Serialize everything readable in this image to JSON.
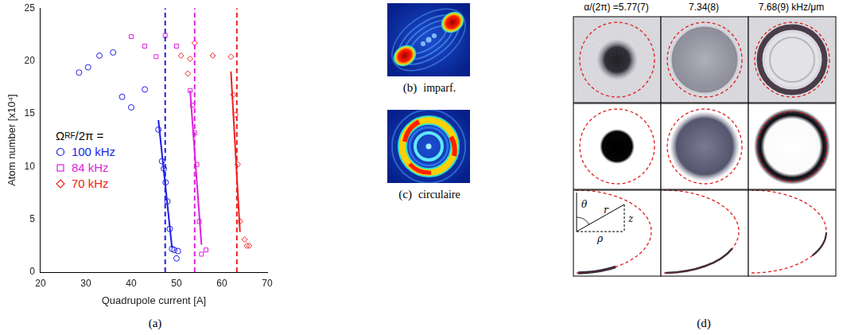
{
  "chart_data": {
    "type": "scatter",
    "label": "(a)",
    "x_label": "Quadrupole current [A]",
    "y_label": "Atom number [x10⁴]",
    "xlim": [
      20,
      70
    ],
    "xticks": [
      20,
      30,
      40,
      50,
      60,
      70
    ],
    "ylim": [
      0,
      25
    ],
    "yticks": [
      0,
      5,
      10,
      15,
      20,
      25
    ],
    "grid": false,
    "legend": "left",
    "legend_title": {
      "base": "Ω",
      "sub": "RF",
      "rest": "/2π ="
    },
    "series": [
      {
        "name": "100 kHz",
        "color": "#1e1ee6",
        "marker": "circle",
        "x": [
          28.5,
          30.5,
          33,
          36,
          38,
          40,
          43,
          46,
          46.8,
          47.2,
          47.6,
          48,
          48.5,
          49,
          49.5,
          50,
          50.3
        ],
        "values": [
          18.9,
          19.4,
          20.5,
          20.8,
          16.6,
          15.6,
          17.3,
          13.5,
          10.5,
          9.8,
          8.5,
          6.7,
          4.1,
          2.2,
          2.1,
          1.3,
          2.0
        ],
        "fit": {
          "x": [
            46,
            49
          ],
          "values": [
            14.4,
            2.3
          ]
        },
        "threshold": 47.5
      },
      {
        "name": "84 kHz",
        "color": "#e01ee0",
        "marker": "square",
        "x": [
          40,
          43,
          45.5,
          47.5,
          50,
          53,
          53.5,
          54,
          54.5,
          55,
          55.5,
          56.5
        ],
        "values": [
          22.3,
          21.4,
          20.4,
          22.4,
          21.4,
          17.2,
          15.8,
          13.2,
          10.2,
          4.8,
          1.7,
          2.1
        ],
        "fit": {
          "x": [
            53,
            55.5
          ],
          "values": [
            17.2,
            2.6
          ]
        },
        "threshold": 54
      },
      {
        "name": "70 kHz",
        "color": "#f02020",
        "marker": "diamond",
        "x": [
          51,
          52.5,
          53,
          54,
          58,
          62,
          62.5,
          63,
          63.5,
          64,
          65,
          65.5,
          66
        ],
        "values": [
          20.5,
          18.8,
          20.2,
          21.7,
          20.5,
          20.4,
          16.8,
          14.9,
          10.2,
          4.8,
          3.1,
          2.5,
          2.5
        ],
        "fit": {
          "x": [
            62,
            64
          ],
          "values": [
            19,
            3.8
          ]
        },
        "threshold": 63.3
      }
    ]
  },
  "panels": {
    "b": {
      "label": "(b)",
      "caption": "imparf."
    },
    "c": {
      "label": "(c)",
      "caption": "circulaire"
    },
    "d": {
      "label": "(d)",
      "column_titles": [
        "α/(2π) =5.77(7)",
        "7.34(8)",
        "7.68(9) kHz/μm"
      ],
      "diagram_labels": {
        "angle": "θ",
        "radius": "r",
        "height": "z",
        "horizontal": "ρ"
      }
    }
  }
}
